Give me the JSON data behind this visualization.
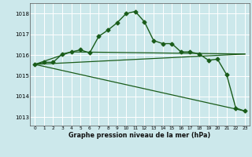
{
  "background_color": "#cce8eb",
  "grid_color": "#ffffff",
  "line_color": "#1a5c1a",
  "title": "Graphe pression niveau de la mer (hPa)",
  "xlim": [
    -0.5,
    23.5
  ],
  "ylim": [
    1012.6,
    1018.5
  ],
  "yticks": [
    1013,
    1014,
    1015,
    1016,
    1017,
    1018
  ],
  "xticks": [
    0,
    1,
    2,
    3,
    4,
    5,
    6,
    7,
    8,
    9,
    10,
    11,
    12,
    13,
    14,
    15,
    16,
    17,
    18,
    19,
    20,
    21,
    22,
    23
  ],
  "series": [
    {
      "x": [
        0,
        1,
        2,
        3,
        4,
        5,
        6,
        7,
        8,
        9,
        10,
        11,
        12,
        13,
        14,
        15,
        16,
        17,
        18,
        19,
        20,
        21,
        22,
        23
      ],
      "y": [
        1015.55,
        1015.65,
        1015.65,
        1016.05,
        1016.15,
        1016.25,
        1016.1,
        1016.9,
        1017.2,
        1017.55,
        1018.0,
        1018.1,
        1017.6,
        1016.7,
        1016.55,
        1016.55,
        1016.15,
        1016.15,
        1016.05,
        1015.75,
        1015.8,
        1015.05,
        1013.45,
        1013.3
      ],
      "marker": "D",
      "markersize": 2.5,
      "linewidth": 1.0
    },
    {
      "x": [
        0,
        23
      ],
      "y": [
        1015.55,
        1016.05
      ],
      "marker": null,
      "linewidth": 0.9
    },
    {
      "x": [
        0,
        23
      ],
      "y": [
        1015.55,
        1013.3
      ],
      "marker": null,
      "linewidth": 0.9
    },
    {
      "x": [
        0,
        4,
        23
      ],
      "y": [
        1015.55,
        1016.15,
        1016.05
      ],
      "marker": null,
      "linewidth": 0.9
    }
  ]
}
